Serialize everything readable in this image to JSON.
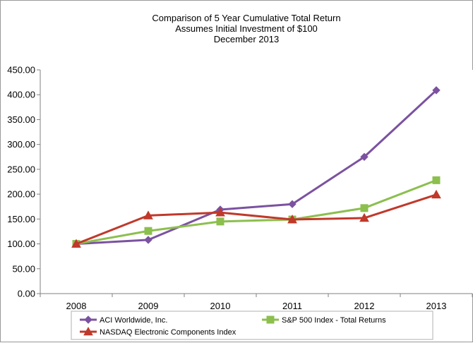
{
  "chart_data": {
    "type": "line",
    "title_lines": [
      "Comparison of 5 Year Cumulative Total Return",
      "Assumes Initial Investment of $100",
      "December 2013"
    ],
    "x": [
      "2008",
      "2009",
      "2010",
      "2011",
      "2012",
      "2013"
    ],
    "y_ticks": [
      "0.00",
      "50.00",
      "100.00",
      "150.00",
      "200.00",
      "250.00",
      "300.00",
      "350.00",
      "400.00",
      "450.00"
    ],
    "ylim": [
      0,
      450
    ],
    "xlabel": "",
    "ylabel": "",
    "grid": false,
    "legend_position": "bottom",
    "series": [
      {
        "name": "ACI Worldwide, Inc.",
        "color": "#7b52a0",
        "marker": "diamond",
        "values": [
          100,
          108,
          169,
          180,
          275,
          409
        ]
      },
      {
        "name": "S&P 500 Index - Total Returns",
        "color": "#8cbf4e",
        "marker": "square",
        "values": [
          100,
          126,
          145,
          149,
          172,
          228
        ]
      },
      {
        "name": "NASDAQ Electronic Components Index",
        "color": "#c0392b",
        "marker": "triangle",
        "values": [
          100,
          157,
          163,
          149,
          152,
          199
        ]
      }
    ]
  }
}
